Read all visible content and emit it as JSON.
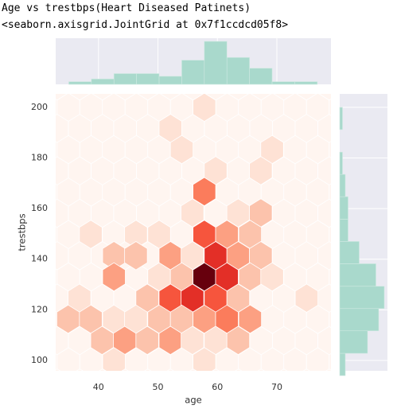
{
  "console": {
    "lines": [
      "Age vs trestbps(Heart Diseased Patinets)",
      "<seaborn.axisgrid.JointGrid at 0x7f1ccdcd05f8>"
    ]
  },
  "chart_data": {
    "type": "hexbin",
    "xlabel": "age",
    "ylabel": "trestbps",
    "xlim": [
      32.8,
      79.1
    ],
    "ylim": [
      95.9,
      205.3
    ],
    "xticks": [
      40,
      50,
      60,
      70
    ],
    "yticks": [
      100,
      120,
      140,
      160,
      180,
      200
    ],
    "grid": true,
    "cmap": "Reds",
    "hexbins": {
      "x": [
        57.8,
        52.1,
        54.0,
        69.2,
        59.7,
        67.3,
        57.8,
        55.8,
        63.5,
        67.3,
        38.7,
        46.3,
        50.2,
        57.8,
        61.6,
        65.5,
        42.6,
        46.3,
        52.1,
        55.8,
        59.7,
        63.5,
        67.3,
        42.6,
        50.2,
        54.0,
        57.8,
        61.6,
        65.5,
        69.2,
        36.8,
        48.2,
        52.1,
        55.8,
        59.7,
        63.5,
        75.0,
        34.9,
        38.7,
        42.6,
        46.3,
        50.2,
        54.0,
        57.8,
        61.6,
        65.5,
        40.6,
        44.4,
        48.2,
        52.1,
        55.8,
        59.7,
        63.5,
        42.6,
        57.8
      ],
      "y": [
        200.0,
        191.7,
        183.3,
        183.3,
        175.0,
        175.0,
        166.7,
        158.3,
        158.3,
        158.3,
        149.8,
        149.8,
        149.8,
        149.8,
        149.8,
        149.8,
        141.4,
        141.4,
        141.4,
        141.4,
        141.4,
        141.4,
        141.4,
        133.0,
        133.0,
        133.0,
        133.0,
        133.0,
        133.0,
        133.0,
        124.6,
        124.6,
        124.6,
        124.6,
        124.6,
        124.6,
        124.6,
        116.3,
        116.3,
        116.3,
        116.3,
        116.3,
        116.3,
        116.3,
        116.3,
        116.3,
        107.9,
        107.9,
        107.9,
        107.9,
        107.9,
        107.9,
        107.9,
        99.5,
        99.5
      ],
      "counts": [
        1,
        1,
        1,
        1,
        1,
        1,
        4,
        1,
        1,
        2,
        1,
        1,
        1,
        5,
        3,
        2,
        2,
        2,
        3,
        1,
        6,
        3,
        2,
        3,
        1,
        2,
        9,
        6,
        2,
        1,
        1,
        2,
        5,
        6,
        5,
        2,
        1,
        2,
        2,
        1,
        1,
        2,
        2,
        3,
        4,
        3,
        2,
        3,
        2,
        3,
        1,
        1,
        2,
        1,
        1
      ]
    },
    "marginal_x": {
      "type": "histogram",
      "color": "#a9d9cc",
      "bins": [
        35.0,
        38.8,
        42.6,
        46.4,
        50.2,
        54.0,
        57.8,
        61.6,
        65.4,
        69.2,
        73.0,
        76.8
      ],
      "counts": [
        1,
        2,
        4,
        4,
        3,
        9,
        16,
        10,
        6,
        1,
        1
      ]
    },
    "marginal_y": {
      "type": "histogram",
      "color": "#a9d9cc",
      "bins": [
        94.0,
        102.8,
        111.7,
        120.5,
        129.3,
        138.2,
        147.0,
        155.8,
        164.7,
        173.5,
        182.3,
        191.2,
        200.0
      ],
      "counts": [
        2,
        10,
        14,
        16,
        13,
        7,
        3,
        3,
        2,
        1,
        0,
        1
      ]
    }
  }
}
